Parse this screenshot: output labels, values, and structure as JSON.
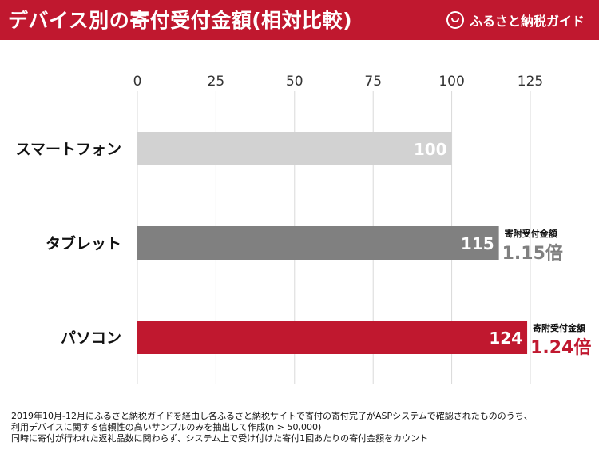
{
  "header": {
    "title": "デバイス別の寄付受付金額(相対比較)",
    "brand": "ふるさと納税ガイド",
    "background": "#c0182f"
  },
  "chart_data": {
    "type": "bar",
    "orientation": "horizontal",
    "categories": [
      "スマートフォン",
      "タブレット",
      "パソコン"
    ],
    "values": [
      100,
      115,
      124
    ],
    "value_labels": [
      "100",
      "115",
      "124"
    ],
    "colors": [
      "#d2d2d2",
      "#808080",
      "#c0182f"
    ],
    "xlim": [
      0,
      125
    ],
    "xticks": [
      0,
      25,
      50,
      75,
      100,
      125
    ],
    "tick_position": "top",
    "grid": true,
    "annotations": [
      null,
      {
        "label": "寄附受付金額",
        "value": "1.15倍",
        "color": "#808080"
      },
      {
        "label": "寄附受付金額",
        "value": "1.24倍",
        "color": "#c0182f"
      }
    ]
  },
  "footnote": {
    "lines": [
      "2019年10月-12月にふるさと納税ガイドを経由し各ふるさと納税サイトで寄付の寄付完了がASPシステムで確認されたもののうち、",
      "利用デバイスに関する信頼性の高いサンプルのみを抽出して作成(n > 50,000)",
      "同時に寄付が行われた返礼品数に関わらず、システム上で受け付けた寄付1回あたりの寄付金額をカウント"
    ]
  }
}
